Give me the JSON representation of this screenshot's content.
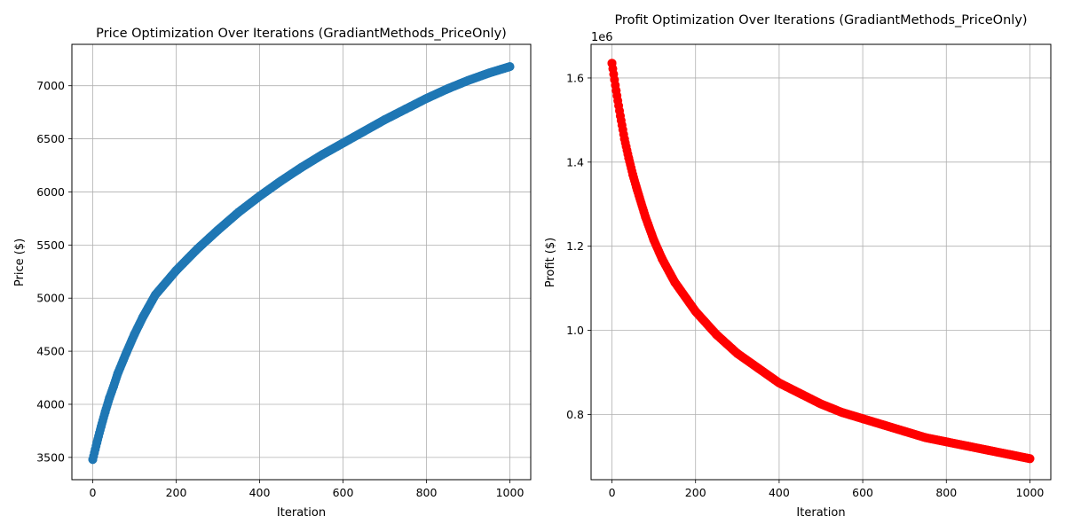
{
  "chart_data": [
    {
      "type": "line",
      "title": "Price Optimization Over Iterations (GradiantMethods_PriceOnly)",
      "xlabel": "Iteration",
      "ylabel": "Price ($)",
      "xlim": [
        -50,
        1050
      ],
      "ylim": [
        3290,
        7390
      ],
      "xticks": [
        0,
        200,
        400,
        600,
        800,
        1000
      ],
      "yticks": [
        3500,
        4000,
        4500,
        5000,
        5500,
        6000,
        6500,
        7000
      ],
      "yticklabels": [
        "3500",
        "4000",
        "4500",
        "5000",
        "5500",
        "6000",
        "6500",
        "7000"
      ],
      "grid": true,
      "marker": "circle",
      "color": "#1f77b4",
      "x": [
        0,
        10,
        20,
        30,
        40,
        50,
        60,
        80,
        100,
        120,
        150,
        200,
        250,
        300,
        350,
        400,
        450,
        500,
        550,
        600,
        650,
        700,
        750,
        800,
        850,
        900,
        950,
        1000
      ],
      "y": [
        3480,
        3640,
        3790,
        3930,
        4060,
        4170,
        4290,
        4480,
        4660,
        4820,
        5030,
        5260,
        5460,
        5640,
        5810,
        5960,
        6100,
        6230,
        6350,
        6460,
        6570,
        6680,
        6780,
        6880,
        6970,
        7050,
        7120,
        7180
      ]
    },
    {
      "type": "line",
      "title": "Profit Optimization Over Iterations (GradiantMethods_PriceOnly)",
      "xlabel": "Iteration",
      "ylabel": "Profit ($)",
      "offset_text": "1e6",
      "xlim": [
        -50,
        1050
      ],
      "ylim": [
        0.645,
        1.68
      ],
      "xticks": [
        0,
        200,
        400,
        600,
        800,
        1000
      ],
      "yticks": [
        0.8,
        1.0,
        1.2,
        1.4,
        1.6
      ],
      "yticklabels": [
        "0.8",
        "1.0",
        "1.2",
        "1.4",
        "1.6"
      ],
      "grid": true,
      "marker": "circle",
      "color": "#ff0000",
      "x": [
        0,
        10,
        20,
        30,
        40,
        50,
        60,
        80,
        100,
        120,
        150,
        200,
        250,
        300,
        350,
        400,
        450,
        500,
        550,
        600,
        650,
        700,
        750,
        800,
        850,
        900,
        950,
        1000
      ],
      "y": [
        1.635,
        1.57,
        1.51,
        1.455,
        1.41,
        1.37,
        1.335,
        1.27,
        1.215,
        1.17,
        1.115,
        1.045,
        0.99,
        0.945,
        0.91,
        0.875,
        0.85,
        0.825,
        0.805,
        0.79,
        0.775,
        0.76,
        0.745,
        0.735,
        0.725,
        0.715,
        0.705,
        0.695
      ]
    }
  ]
}
